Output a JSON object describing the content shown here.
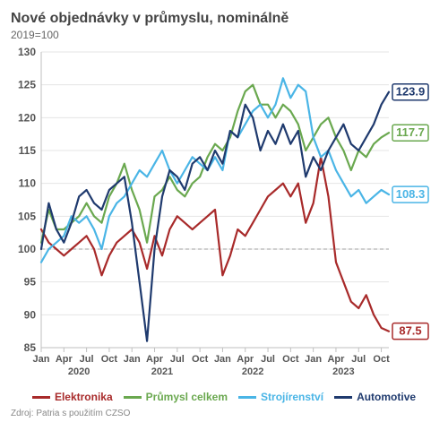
{
  "chart": {
    "type": "line",
    "title": "Nové objednávky v průmyslu, nominálně",
    "subtitle": "2019=100",
    "source": "Zdroj: Patria s použitím CZSO",
    "background_color": "#ffffff",
    "border_color": "#bfbfbf",
    "grid_color": "#e5e5e5",
    "reference_line_color": "#bfbfbf",
    "reference_value": 100,
    "title_fontsize": 16,
    "label_fontsize": 12,
    "endlabel_fontsize": 13,
    "ylim": [
      85,
      130
    ],
    "ytick_step": 5,
    "yticks": [
      85,
      90,
      95,
      100,
      105,
      110,
      115,
      120,
      125,
      130
    ],
    "line_width": 2.2,
    "x_ticks": [
      {
        "i": 0,
        "label": "Jan"
      },
      {
        "i": 3,
        "label": "Apr"
      },
      {
        "i": 6,
        "label": "Jul"
      },
      {
        "i": 9,
        "label": "Oct"
      },
      {
        "i": 12,
        "label": "Jan"
      },
      {
        "i": 15,
        "label": "Apr"
      },
      {
        "i": 18,
        "label": "Jul"
      },
      {
        "i": 21,
        "label": "Oct"
      },
      {
        "i": 24,
        "label": "Jan"
      },
      {
        "i": 27,
        "label": "Apr"
      },
      {
        "i": 30,
        "label": "Jul"
      },
      {
        "i": 33,
        "label": "Oct"
      },
      {
        "i": 36,
        "label": "Jan"
      },
      {
        "i": 39,
        "label": "Apr"
      },
      {
        "i": 42,
        "label": "Jul"
      },
      {
        "i": 45,
        "label": "Oct"
      }
    ],
    "x_year_labels": [
      {
        "i": 5,
        "label": "2020"
      },
      {
        "i": 16,
        "label": "2021"
      },
      {
        "i": 28,
        "label": "2022"
      },
      {
        "i": 40,
        "label": "2023"
      }
    ],
    "n_points": 47,
    "series": [
      {
        "key": "elektronika",
        "name": "Elektronika",
        "color": "#a82a2a",
        "end_label": "87.5",
        "end_label_box": "#a82a2a",
        "values": [
          103,
          101,
          100,
          99,
          100,
          101,
          102,
          100,
          96,
          99,
          101,
          102,
          103,
          101,
          97,
          102,
          99,
          103,
          105,
          104,
          103,
          104,
          105,
          106,
          96,
          99,
          103,
          102,
          104,
          106,
          108,
          109,
          110,
          108,
          110,
          104,
          107,
          114,
          108,
          98,
          95,
          92,
          91,
          93,
          90,
          88,
          87.5
        ]
      },
      {
        "key": "prumysl",
        "name": "Průmysl celkem",
        "color": "#6aa84f",
        "end_label": "117.7",
        "end_label_box": "#6aa84f",
        "values": [
          101,
          106,
          103,
          103,
          104,
          105,
          107,
          105,
          104,
          108,
          110,
          113,
          109,
          106,
          101,
          108,
          109,
          111,
          109,
          108,
          110,
          111,
          114,
          116,
          115,
          117,
          121,
          124,
          125,
          122,
          122,
          120,
          122,
          121,
          119,
          115,
          117,
          119,
          120,
          117,
          115,
          112,
          115,
          114,
          116,
          117,
          117.7
        ]
      },
      {
        "key": "strojirenstvi",
        "name": "Strojírenství",
        "color": "#4ab5e6",
        "end_label": "108.3",
        "end_label_box": "#4ab5e6",
        "values": [
          98,
          100,
          101,
          102,
          105,
          104,
          105,
          103,
          100,
          105,
          107,
          108,
          110,
          112,
          111,
          113,
          115,
          112,
          110,
          112,
          114,
          113,
          112,
          114,
          112,
          118,
          117,
          119,
          121,
          122,
          120,
          122,
          126,
          123,
          125,
          124,
          117,
          114,
          115,
          112,
          110,
          108,
          109,
          107,
          108,
          109,
          108.3
        ]
      },
      {
        "key": "automotive",
        "name": "Automotive",
        "color": "#1f3a6e",
        "end_label": "123.9",
        "end_label_box": "#1f3a6e",
        "values": [
          100,
          107,
          103,
          101,
          104,
          108,
          109,
          107,
          106,
          109,
          110,
          111,
          104,
          95,
          86,
          100,
          108,
          112,
          111,
          109,
          113,
          114,
          112,
          115,
          113,
          118,
          117,
          122,
          120,
          115,
          118,
          116,
          119,
          116,
          118,
          111,
          114,
          112,
          115,
          117,
          119,
          116,
          115,
          117,
          119,
          122,
          123.9
        ]
      }
    ]
  }
}
